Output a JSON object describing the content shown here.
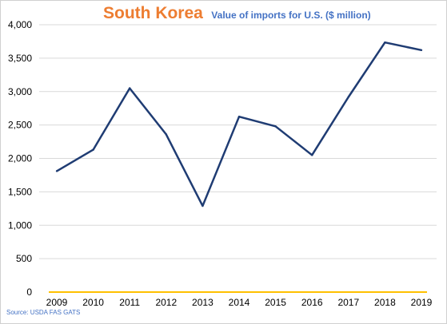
{
  "title": "South Korea",
  "subtitle": "Value of imports for U.S. ($ million)",
  "source": "Source: USDA FAS GATS",
  "colors": {
    "title": "#ED7D31",
    "subtitle": "#4472C4",
    "line": "#1F3C73",
    "baseline": "#FFC000",
    "grid": "#D9D9D9"
  },
  "chart_data": {
    "type": "line",
    "title": "South Korea",
    "subtitle": "Value of imports for U.S. ($ million)",
    "xlabel": "",
    "ylabel": "",
    "categories": [
      "2009",
      "2010",
      "2011",
      "2012",
      "2013",
      "2014",
      "2015",
      "2016",
      "2017",
      "2018",
      "2019"
    ],
    "series": [
      {
        "values": [
          1810,
          2130,
          3050,
          2360,
          1290,
          2625,
          2480,
          2050,
          2920,
          3735,
          3620
        ]
      }
    ],
    "y_ticks": [
      0,
      500,
      1000,
      1500,
      2000,
      2500,
      3000,
      3500,
      4000
    ],
    "y_tick_labels": [
      "0",
      "500",
      "1,000",
      "1,500",
      "2,000",
      "2,500",
      "3,000",
      "3,500",
      "4,000"
    ],
    "ylim": [
      0,
      4000
    ],
    "grid": true,
    "legend": "none"
  }
}
